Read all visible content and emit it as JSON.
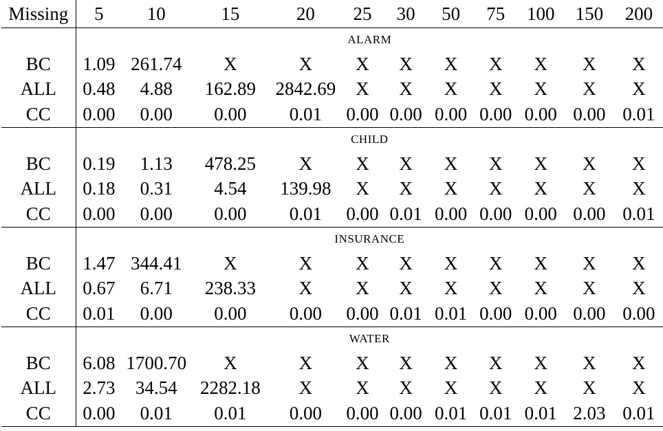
{
  "table": {
    "header_label": "Missing",
    "columns": [
      "5",
      "10",
      "15",
      "20",
      "25",
      "30",
      "50",
      "75",
      "100",
      "150",
      "200"
    ],
    "sections": [
      {
        "title": "ALARM",
        "rows": [
          {
            "method": "BC",
            "values": [
              "1.09",
              "261.74",
              "X",
              "X",
              "X",
              "X",
              "X",
              "X",
              "X",
              "X",
              "X"
            ]
          },
          {
            "method": "ALL",
            "values": [
              "0.48",
              "4.88",
              "162.89",
              "2842.69",
              "X",
              "X",
              "X",
              "X",
              "X",
              "X",
              "X"
            ]
          },
          {
            "method": "CC",
            "values": [
              "0.00",
              "0.00",
              "0.00",
              "0.01",
              "0.00",
              "0.00",
              "0.00",
              "0.00",
              "0.00",
              "0.00",
              "0.01"
            ]
          }
        ]
      },
      {
        "title": "CHILD",
        "rows": [
          {
            "method": "BC",
            "values": [
              "0.19",
              "1.13",
              "478.25",
              "X",
              "X",
              "X",
              "X",
              "X",
              "X",
              "X",
              "X"
            ]
          },
          {
            "method": "ALL",
            "values": [
              "0.18",
              "0.31",
              "4.54",
              "139.98",
              "X",
              "X",
              "X",
              "X",
              "X",
              "X",
              "X"
            ]
          },
          {
            "method": "CC",
            "values": [
              "0.00",
              "0.00",
              "0.00",
              "0.01",
              "0.00",
              "0.01",
              "0.00",
              "0.00",
              "0.00",
              "0.00",
              "0.01"
            ]
          }
        ]
      },
      {
        "title": "INSURANCE",
        "rows": [
          {
            "method": "BC",
            "values": [
              "1.47",
              "344.41",
              "X",
              "X",
              "X",
              "X",
              "X",
              "X",
              "X",
              "X",
              "X"
            ]
          },
          {
            "method": "ALL",
            "values": [
              "0.67",
              "6.71",
              "238.33",
              "X",
              "X",
              "X",
              "X",
              "X",
              "X",
              "X",
              "X"
            ]
          },
          {
            "method": "CC",
            "values": [
              "0.01",
              "0.00",
              "0.00",
              "0.00",
              "0.00",
              "0.01",
              "0.01",
              "0.00",
              "0.00",
              "0.00",
              "0.00"
            ]
          }
        ]
      },
      {
        "title": "WATER",
        "rows": [
          {
            "method": "BC",
            "values": [
              "6.08",
              "1700.70",
              "X",
              "X",
              "X",
              "X",
              "X",
              "X",
              "X",
              "X",
              "X"
            ]
          },
          {
            "method": "ALL",
            "values": [
              "2.73",
              "34.54",
              "2282.18",
              "X",
              "X",
              "X",
              "X",
              "X",
              "X",
              "X",
              "X"
            ]
          },
          {
            "method": "CC",
            "values": [
              "0.00",
              "0.01",
              "0.01",
              "0.00",
              "0.00",
              "0.00",
              "0.01",
              "0.01",
              "0.01",
              "2.03",
              "0.01"
            ]
          }
        ]
      }
    ]
  }
}
